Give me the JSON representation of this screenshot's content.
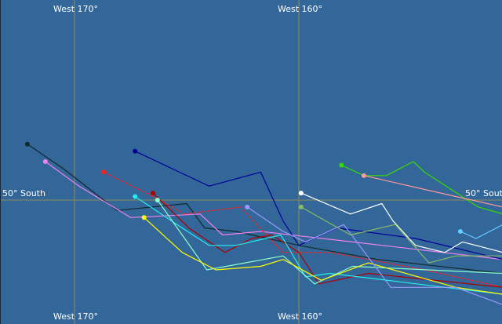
{
  "map": {
    "background_color": "#336699",
    "graticule_color": "#8c8c5a",
    "graticule": {
      "meridians_west": [
        170,
        160
      ],
      "parallels_south": [
        50
      ]
    },
    "labels": {
      "top_w170": "West 170°",
      "top_w160": "West 160°",
      "bottom_w170": "West 170°",
      "bottom_w160": "West 160°",
      "left_50s": "50° South",
      "right_50s": "50° South"
    },
    "tracks": [
      {
        "color": "#0f2a2a",
        "points": [
          [
            172.1,
            48.4
          ],
          [
            170.5,
            49.1
          ],
          [
            168.1,
            50.3
          ],
          [
            165.0,
            50.1
          ],
          [
            164.2,
            50.8
          ],
          [
            162.8,
            50.9
          ],
          [
            160.0,
            51.3
          ],
          [
            156.5,
            51.7
          ],
          [
            150.9,
            52.1
          ]
        ]
      },
      {
        "color": "#ee82ee",
        "points": [
          [
            171.3,
            48.9
          ],
          [
            169.8,
            49.6
          ],
          [
            167.5,
            50.5
          ],
          [
            164.4,
            50.4
          ],
          [
            163.4,
            51.0
          ],
          [
            161.7,
            50.9
          ],
          [
            157.6,
            51.2
          ],
          [
            150.9,
            51.7
          ]
        ]
      },
      {
        "color": "#000099",
        "points": [
          [
            167.3,
            48.6
          ],
          [
            164.0,
            49.6
          ],
          [
            161.7,
            49.2
          ],
          [
            160.7,
            50.6
          ],
          [
            160.0,
            51.3
          ],
          [
            158.3,
            50.8
          ],
          [
            154.8,
            51.1
          ],
          [
            150.9,
            51.7
          ]
        ]
      },
      {
        "color": "#ff2020",
        "dashed": true,
        "points": [
          [
            168.7,
            49.2
          ],
          [
            166.5,
            49.9
          ],
          [
            165.1,
            50.4
          ],
          [
            162.6,
            50.2
          ],
          [
            161.6,
            50.9
          ],
          [
            160.7,
            51.5
          ],
          [
            158.6,
            51.5
          ],
          [
            154.4,
            52.0
          ],
          [
            150.9,
            52.5
          ]
        ]
      },
      {
        "color": "#aa0000",
        "points": [
          [
            166.5,
            49.8
          ],
          [
            164.9,
            50.8
          ],
          [
            163.3,
            51.5
          ],
          [
            162.1,
            51.1
          ],
          [
            161.2,
            51.0
          ],
          [
            160.0,
            51.5
          ],
          [
            159.1,
            52.4
          ],
          [
            156.9,
            52.1
          ],
          [
            150.9,
            52.5
          ]
        ]
      },
      {
        "color": "#22eeee",
        "points": [
          [
            167.3,
            49.9
          ],
          [
            165.2,
            50.8
          ],
          [
            164.0,
            51.3
          ],
          [
            162.8,
            51.3
          ],
          [
            160.8,
            51.0
          ],
          [
            159.7,
            52.2
          ],
          [
            158.6,
            52.1
          ],
          [
            150.9,
            52.7
          ]
        ]
      },
      {
        "color": "#88ffcc",
        "points": [
          [
            166.3,
            50.0
          ],
          [
            164.1,
            52.0
          ],
          [
            162.4,
            51.8
          ],
          [
            160.7,
            51.6
          ],
          [
            159.3,
            52.4
          ],
          [
            157.6,
            51.9
          ],
          [
            150.9,
            52.1
          ]
        ]
      },
      {
        "color": "#ffff00",
        "points": [
          [
            166.9,
            50.5
          ],
          [
            165.2,
            51.5
          ],
          [
            163.7,
            52.0
          ],
          [
            161.7,
            51.9
          ],
          [
            160.7,
            51.7
          ],
          [
            159.0,
            52.3
          ],
          [
            156.9,
            51.8
          ],
          [
            153.0,
            52.5
          ],
          [
            150.9,
            52.7
          ]
        ]
      },
      {
        "color": "#9999ff",
        "points": [
          [
            162.3,
            50.2
          ],
          [
            160.7,
            50.9
          ],
          [
            159.7,
            51.2
          ],
          [
            158.0,
            50.7
          ],
          [
            155.9,
            52.5
          ],
          [
            153.0,
            52.5
          ],
          [
            150.9,
            53.0
          ]
        ]
      },
      {
        "color": "#ffffff",
        "points": [
          [
            159.9,
            49.8
          ],
          [
            157.7,
            50.4
          ],
          [
            156.3,
            50.1
          ],
          [
            155.8,
            50.6
          ],
          [
            154.8,
            51.3
          ],
          [
            153.5,
            51.5
          ],
          [
            152.7,
            51.2
          ],
          [
            150.9,
            51.5
          ]
        ]
      },
      {
        "color": "#88bb66",
        "points": [
          [
            159.9,
            50.2
          ],
          [
            157.7,
            51.0
          ],
          [
            155.7,
            50.7
          ],
          [
            154.2,
            51.8
          ],
          [
            153.0,
            51.6
          ],
          [
            150.9,
            51.6
          ]
        ]
      },
      {
        "color": "#33dd00",
        "points": [
          [
            158.1,
            49.0
          ],
          [
            157.1,
            49.3
          ],
          [
            156.1,
            49.3
          ],
          [
            154.9,
            48.9
          ],
          [
            154.4,
            49.2
          ],
          [
            152.0,
            50.2
          ],
          [
            150.9,
            50.4
          ]
        ]
      },
      {
        "color": "#ff9999",
        "points": [
          [
            157.1,
            49.3
          ],
          [
            153.0,
            49.9
          ],
          [
            150.9,
            50.2
          ]
        ]
      },
      {
        "color": "#66ccff",
        "points": [
          [
            152.8,
            50.9
          ],
          [
            152.1,
            51.1
          ],
          [
            150.9,
            50.7
          ]
        ]
      }
    ]
  }
}
